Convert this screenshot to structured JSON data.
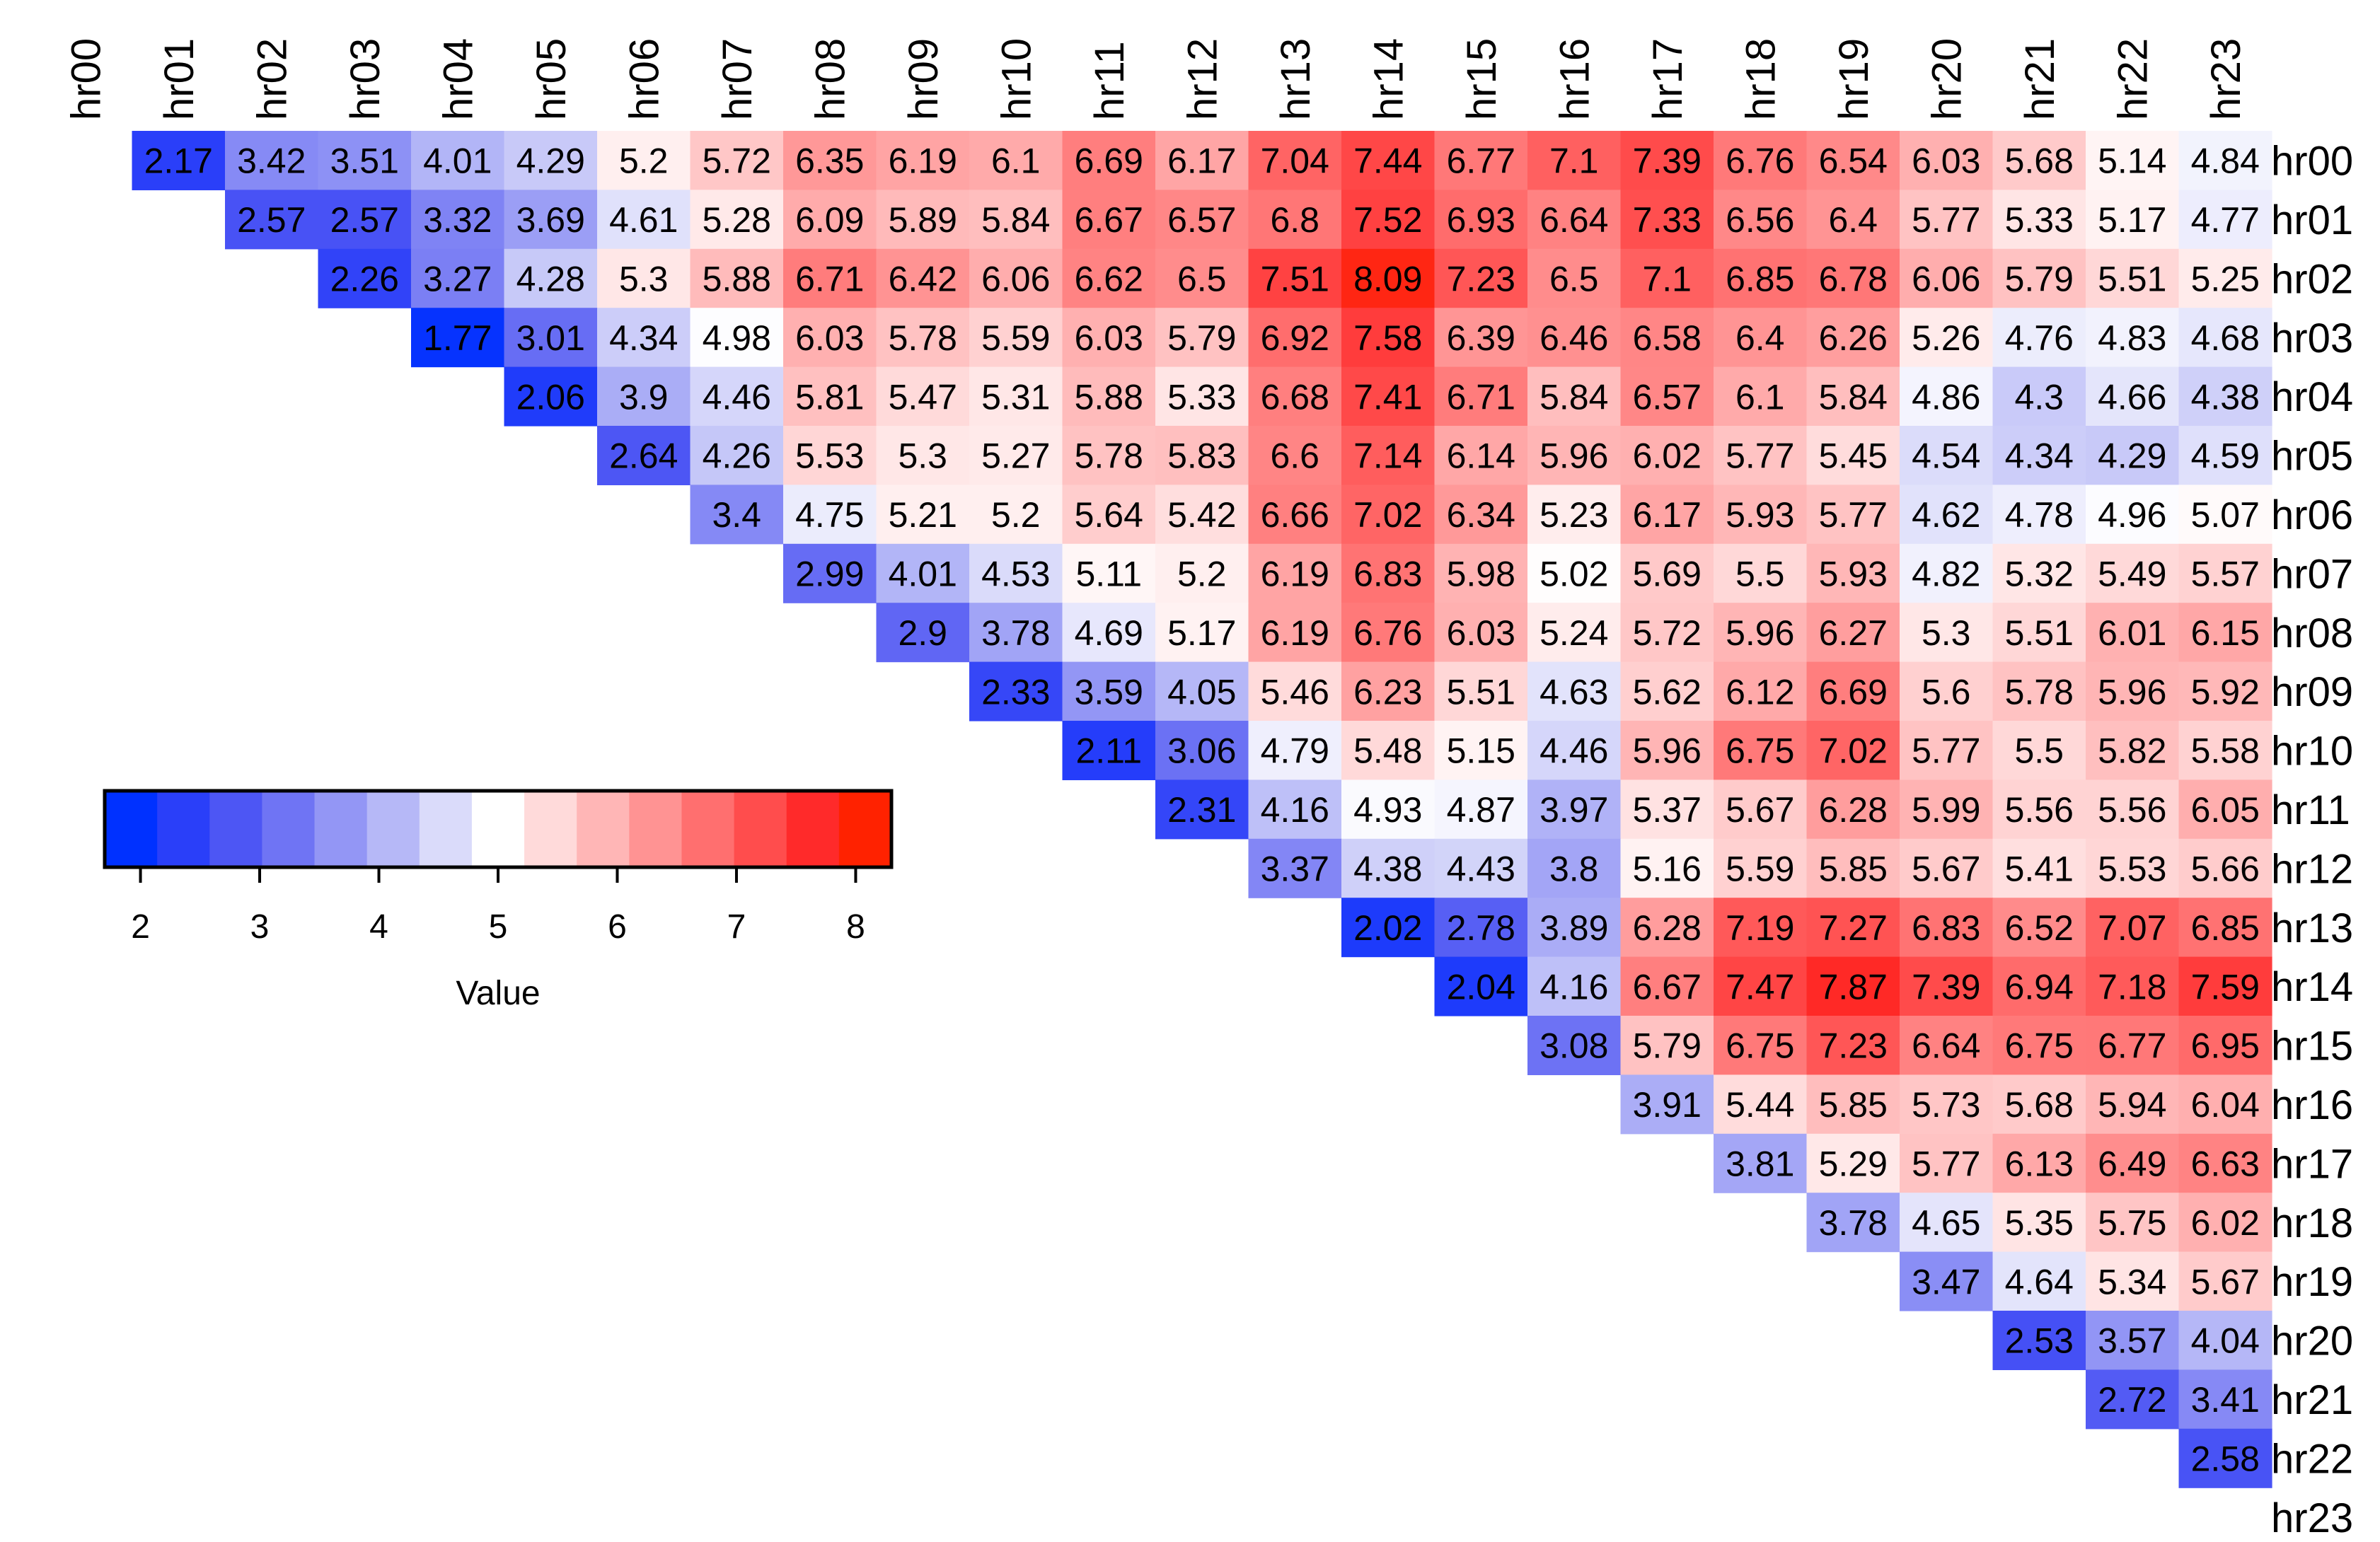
{
  "chart_data": {
    "type": "heatmap",
    "title": "",
    "labels": [
      "hr00",
      "hr01",
      "hr02",
      "hr03",
      "hr04",
      "hr05",
      "hr06",
      "hr07",
      "hr08",
      "hr09",
      "hr10",
      "hr11",
      "hr12",
      "hr13",
      "hr14",
      "hr15",
      "hr16",
      "hr17",
      "hr18",
      "hr19",
      "hr20",
      "hr21",
      "hr22",
      "hr23"
    ],
    "matrix": [
      [
        null,
        2.17,
        3.42,
        3.51,
        4.01,
        4.29,
        5.2,
        5.72,
        6.35,
        6.19,
        6.1,
        6.69,
        6.17,
        7.04,
        7.44,
        6.77,
        7.1,
        7.39,
        6.76,
        6.54,
        6.03,
        5.68,
        5.14,
        4.84
      ],
      [
        null,
        null,
        2.57,
        2.57,
        3.32,
        3.69,
        4.61,
        5.28,
        6.09,
        5.89,
        5.84,
        6.67,
        6.57,
        6.8,
        7.52,
        6.93,
        6.64,
        7.33,
        6.56,
        6.4,
        5.77,
        5.33,
        5.17,
        4.77
      ],
      [
        null,
        null,
        null,
        2.26,
        3.27,
        4.28,
        5.3,
        5.88,
        6.71,
        6.42,
        6.06,
        6.62,
        6.5,
        7.51,
        8.09,
        7.23,
        6.5,
        7.1,
        6.85,
        6.78,
        6.06,
        5.79,
        5.51,
        5.25
      ],
      [
        null,
        null,
        null,
        null,
        1.77,
        3.01,
        4.34,
        4.98,
        6.03,
        5.78,
        5.59,
        6.03,
        5.79,
        6.92,
        7.58,
        6.39,
        6.46,
        6.58,
        6.4,
        6.26,
        5.26,
        4.76,
        4.83,
        4.68
      ],
      [
        null,
        null,
        null,
        null,
        null,
        2.06,
        3.9,
        4.46,
        5.81,
        5.47,
        5.31,
        5.88,
        5.33,
        6.68,
        7.41,
        6.71,
        5.84,
        6.57,
        6.1,
        5.84,
        4.86,
        4.3,
        4.66,
        4.38
      ],
      [
        null,
        null,
        null,
        null,
        null,
        null,
        2.64,
        4.26,
        5.53,
        5.3,
        5.27,
        5.78,
        5.83,
        6.6,
        7.14,
        6.14,
        5.96,
        6.02,
        5.77,
        5.45,
        4.54,
        4.34,
        4.29,
        4.59
      ],
      [
        null,
        null,
        null,
        null,
        null,
        null,
        null,
        3.4,
        4.75,
        5.21,
        5.2,
        5.64,
        5.42,
        6.66,
        7.02,
        6.34,
        5.23,
        6.17,
        5.93,
        5.77,
        4.62,
        4.78,
        4.96,
        5.07
      ],
      [
        null,
        null,
        null,
        null,
        null,
        null,
        null,
        null,
        2.99,
        4.01,
        4.53,
        5.11,
        5.2,
        6.19,
        6.83,
        5.98,
        5.02,
        5.69,
        5.5,
        5.93,
        4.82,
        5.32,
        5.49,
        5.57
      ],
      [
        null,
        null,
        null,
        null,
        null,
        null,
        null,
        null,
        null,
        2.9,
        3.78,
        4.69,
        5.17,
        6.19,
        6.76,
        6.03,
        5.24,
        5.72,
        5.96,
        6.27,
        5.3,
        5.51,
        6.01,
        6.15
      ],
      [
        null,
        null,
        null,
        null,
        null,
        null,
        null,
        null,
        null,
        null,
        2.33,
        3.59,
        4.05,
        5.46,
        6.23,
        5.51,
        4.63,
        5.62,
        6.12,
        6.69,
        5.6,
        5.78,
        5.96,
        5.92
      ],
      [
        null,
        null,
        null,
        null,
        null,
        null,
        null,
        null,
        null,
        null,
        null,
        2.11,
        3.06,
        4.79,
        5.48,
        5.15,
        4.46,
        5.96,
        6.75,
        7.02,
        5.77,
        5.5,
        5.82,
        5.58
      ],
      [
        null,
        null,
        null,
        null,
        null,
        null,
        null,
        null,
        null,
        null,
        null,
        null,
        2.31,
        4.16,
        4.93,
        4.87,
        3.97,
        5.37,
        5.67,
        6.28,
        5.99,
        5.56,
        5.56,
        6.05
      ],
      [
        null,
        null,
        null,
        null,
        null,
        null,
        null,
        null,
        null,
        null,
        null,
        null,
        null,
        3.37,
        4.38,
        4.43,
        3.8,
        5.16,
        5.59,
        5.85,
        5.67,
        5.41,
        5.53,
        5.66
      ],
      [
        null,
        null,
        null,
        null,
        null,
        null,
        null,
        null,
        null,
        null,
        null,
        null,
        null,
        null,
        2.02,
        2.78,
        3.89,
        6.28,
        7.19,
        7.27,
        6.83,
        6.52,
        7.07,
        6.85
      ],
      [
        null,
        null,
        null,
        null,
        null,
        null,
        null,
        null,
        null,
        null,
        null,
        null,
        null,
        null,
        null,
        2.04,
        4.16,
        6.67,
        7.47,
        7.87,
        7.39,
        6.94,
        7.18,
        7.59
      ],
      [
        null,
        null,
        null,
        null,
        null,
        null,
        null,
        null,
        null,
        null,
        null,
        null,
        null,
        null,
        null,
        null,
        3.08,
        5.79,
        6.75,
        7.23,
        6.64,
        6.75,
        6.77,
        6.95
      ],
      [
        null,
        null,
        null,
        null,
        null,
        null,
        null,
        null,
        null,
        null,
        null,
        null,
        null,
        null,
        null,
        null,
        null,
        3.91,
        5.44,
        5.85,
        5.73,
        5.68,
        5.94,
        6.04
      ],
      [
        null,
        null,
        null,
        null,
        null,
        null,
        null,
        null,
        null,
        null,
        null,
        null,
        null,
        null,
        null,
        null,
        null,
        null,
        3.81,
        5.29,
        5.77,
        6.13,
        6.49,
        6.63
      ],
      [
        null,
        null,
        null,
        null,
        null,
        null,
        null,
        null,
        null,
        null,
        null,
        null,
        null,
        null,
        null,
        null,
        null,
        null,
        null,
        3.78,
        4.65,
        5.35,
        5.75,
        6.02
      ],
      [
        null,
        null,
        null,
        null,
        null,
        null,
        null,
        null,
        null,
        null,
        null,
        null,
        null,
        null,
        null,
        null,
        null,
        null,
        null,
        null,
        3.47,
        4.64,
        5.34,
        5.67
      ],
      [
        null,
        null,
        null,
        null,
        null,
        null,
        null,
        null,
        null,
        null,
        null,
        null,
        null,
        null,
        null,
        null,
        null,
        null,
        null,
        null,
        null,
        2.53,
        3.57,
        4.04
      ],
      [
        null,
        null,
        null,
        null,
        null,
        null,
        null,
        null,
        null,
        null,
        null,
        null,
        null,
        null,
        null,
        null,
        null,
        null,
        null,
        null,
        null,
        null,
        2.72,
        3.41
      ],
      [
        null,
        null,
        null,
        null,
        null,
        null,
        null,
        null,
        null,
        null,
        null,
        null,
        null,
        null,
        null,
        null,
        null,
        null,
        null,
        null,
        null,
        null,
        null,
        2.58
      ],
      [
        null,
        null,
        null,
        null,
        null,
        null,
        null,
        null,
        null,
        null,
        null,
        null,
        null,
        null,
        null,
        null,
        null,
        null,
        null,
        null,
        null,
        null,
        null,
        null
      ]
    ],
    "legend": {
      "title": "Value",
      "ticks": [
        2,
        3,
        4,
        5,
        6,
        7,
        8
      ],
      "range": [
        1.7,
        8.3
      ],
      "colors": [
        "#0031ff",
        "#2a3ff9",
        "#4d56f4",
        "#6f74f4",
        "#9396f5",
        "#b6b8f7",
        "#dadbfa",
        "#ffffff",
        "#ffdada",
        "#ffb6b6",
        "#ff9393",
        "#ff6f6f",
        "#ff4d4d",
        "#ff2a2a",
        "#ff2200"
      ],
      "placement": "left-middle"
    }
  }
}
